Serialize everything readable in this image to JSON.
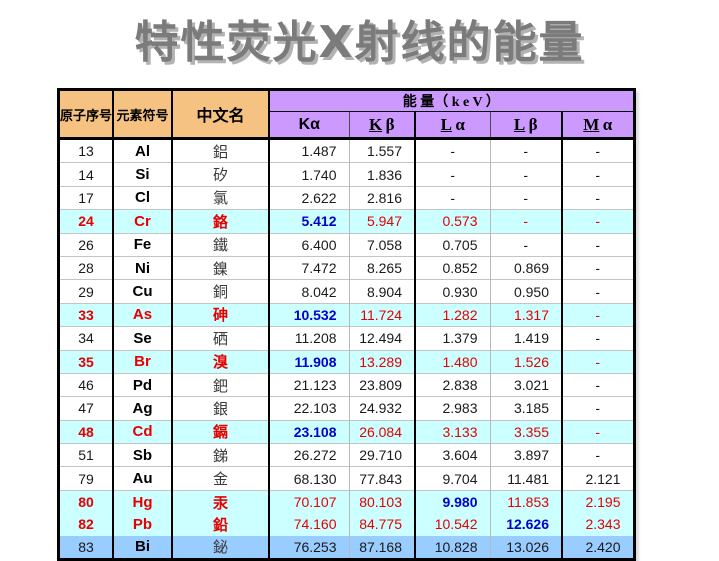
{
  "title": "特性荧光X射线的能量",
  "colors": {
    "header_orange": "#F6C282",
    "header_purple": "#CC99FF",
    "highlight_row_cyan": "#CCFFFF",
    "last_row_blue": "#99CCFF",
    "emphasis_red": "#E60000",
    "emphasis_blue": "#0000CC",
    "title_gray": "#7B7B7B"
  },
  "table": {
    "headers": {
      "col1": "原子序号",
      "col2": "元素符号",
      "col3": "中文名",
      "energy": "能 量（ k e V ）",
      "sub": [
        "Kα",
        "Kβ",
        "Lα",
        "Lβ",
        "Mα"
      ]
    },
    "rows": [
      {
        "num": "13",
        "sym": "Al",
        "name": "鋁",
        "vals": [
          "1.487",
          "1.557",
          "-",
          "-",
          "-"
        ],
        "style": "normal",
        "blue": -1,
        "nodiv": false
      },
      {
        "num": "14",
        "sym": "Si",
        "name": "矽",
        "vals": [
          "1.740",
          "1.836",
          "-",
          "-",
          "-"
        ],
        "style": "normal",
        "blue": -1,
        "nodiv": false
      },
      {
        "num": "17",
        "sym": "Cl",
        "name": "氯",
        "vals": [
          "2.622",
          "2.816",
          "-",
          "-",
          "-"
        ],
        "style": "normal",
        "blue": -1,
        "nodiv": false
      },
      {
        "num": "24",
        "sym": "Cr",
        "name": "鉻",
        "vals": [
          "5.412",
          "5.947",
          "0.573",
          "-",
          "-"
        ],
        "style": "highlight",
        "blue": 0,
        "nodiv": false
      },
      {
        "num": "26",
        "sym": "Fe",
        "name": "鐵",
        "vals": [
          "6.400",
          "7.058",
          "0.705",
          "-",
          "-"
        ],
        "style": "normal",
        "blue": -1,
        "nodiv": false
      },
      {
        "num": "28",
        "sym": "Ni",
        "name": "鎳",
        "vals": [
          "7.472",
          "8.265",
          "0.852",
          "0.869",
          "-"
        ],
        "style": "normal",
        "blue": -1,
        "nodiv": false
      },
      {
        "num": "29",
        "sym": "Cu",
        "name": "銅",
        "vals": [
          "8.042",
          "8.904",
          "0.930",
          "0.950",
          "-"
        ],
        "style": "normal",
        "blue": -1,
        "nodiv": false
      },
      {
        "num": "33",
        "sym": "As",
        "name": "砷",
        "vals": [
          "10.532",
          "11.724",
          "1.282",
          "1.317",
          "-"
        ],
        "style": "highlight",
        "blue": 0,
        "nodiv": false
      },
      {
        "num": "34",
        "sym": "Se",
        "name": "硒",
        "vals": [
          "11.208",
          "12.494",
          "1.379",
          "1.419",
          "-"
        ],
        "style": "normal",
        "blue": -1,
        "nodiv": false
      },
      {
        "num": "35",
        "sym": "Br",
        "name": "溴",
        "vals": [
          "11.908",
          "13.289",
          "1.480",
          "1.526",
          "-"
        ],
        "style": "highlight",
        "blue": 0,
        "nodiv": false
      },
      {
        "num": "46",
        "sym": "Pd",
        "name": "鈀",
        "vals": [
          "21.123",
          "23.809",
          "2.838",
          "3.021",
          "-"
        ],
        "style": "normal",
        "blue": -1,
        "nodiv": false
      },
      {
        "num": "47",
        "sym": "Ag",
        "name": "銀",
        "vals": [
          "22.103",
          "24.932",
          "2.983",
          "3.185",
          "-"
        ],
        "style": "normal",
        "blue": -1,
        "nodiv": false
      },
      {
        "num": "48",
        "sym": "Cd",
        "name": "鎘",
        "vals": [
          "23.108",
          "26.084",
          "3.133",
          "3.355",
          "-"
        ],
        "style": "highlight",
        "blue": 0,
        "nodiv": false
      },
      {
        "num": "51",
        "sym": "Sb",
        "name": "銻",
        "vals": [
          "26.272",
          "29.710",
          "3.604",
          "3.897",
          "-"
        ],
        "style": "normal",
        "blue": -1,
        "nodiv": false
      },
      {
        "num": "79",
        "sym": "Au",
        "name": "金",
        "vals": [
          "68.130",
          "77.843",
          "9.704",
          "11.481",
          "2.121"
        ],
        "style": "normal",
        "blue": -1,
        "nodiv": false
      },
      {
        "num": "80",
        "sym": "Hg",
        "name": "汞",
        "vals": [
          "70.107",
          "80.103",
          "9.980",
          "11.853",
          "2.195"
        ],
        "style": "highlight",
        "blue": 2,
        "nodiv": true
      },
      {
        "num": "82",
        "sym": "Pb",
        "name": "鉛",
        "vals": [
          "74.160",
          "84.775",
          "10.542",
          "12.626",
          "2.343"
        ],
        "style": "highlight",
        "blue": 3,
        "nodiv": true
      },
      {
        "num": "83",
        "sym": "Bi",
        "name": "鉍",
        "vals": [
          "76.253",
          "87.168",
          "10.828",
          "13.026",
          "2.420"
        ],
        "style": "last",
        "blue": -1,
        "nodiv": false
      }
    ]
  }
}
